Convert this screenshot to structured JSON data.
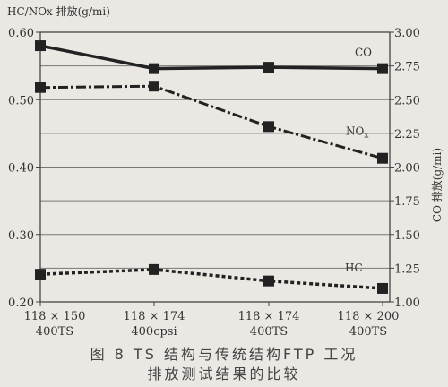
{
  "chart_data": {
    "type": "line",
    "categories": [
      [
        "118 × 150",
        "400TS"
      ],
      [
        "118 × 174",
        "400cpsi"
      ],
      [
        "118 × 174",
        "400TS"
      ],
      [
        "118 × 200",
        "400TS"
      ]
    ],
    "ylabel_left": "HC/NOx 排放(g/mi)",
    "ylabel_right": "CO 排放(g/mi)",
    "ylim_left": [
      0.2,
      0.6
    ],
    "ylim_right": [
      1.0,
      3.0
    ],
    "yticks_left": [
      "0.60",
      "0.50",
      "0.40",
      "0.30",
      "0.20"
    ],
    "yticks_left_values": [
      0.6,
      0.5,
      0.4,
      0.3,
      0.2
    ],
    "yticks_right": [
      "3.00",
      "2.75",
      "2.50",
      "2.25",
      "2.00",
      "1.75",
      "1.50",
      "1.25",
      "1.00"
    ],
    "yticks_right_values": [
      3.0,
      2.75,
      2.5,
      2.25,
      2.0,
      1.75,
      1.5,
      1.25,
      1.0
    ],
    "grid": true,
    "series": [
      {
        "name": "CO",
        "axis": "right",
        "values": [
          2.9,
          2.73,
          2.74,
          2.73
        ],
        "style": "solid"
      },
      {
        "name": "NOx",
        "axis": "left",
        "values": [
          0.518,
          0.52,
          0.46,
          0.413
        ],
        "style": "dashdot"
      },
      {
        "name": "HC",
        "axis": "left",
        "values": [
          0.241,
          0.248,
          0.231,
          0.22
        ],
        "style": "dotted"
      }
    ]
  },
  "caption": {
    "line1": "图 8 TS 结构与传统结构FTP 工况",
    "line2": "排放测试结果的比较"
  },
  "colors": {
    "line": "#222222",
    "grid": "#777777",
    "frame": "#444444",
    "background": "#ebe8e4"
  }
}
